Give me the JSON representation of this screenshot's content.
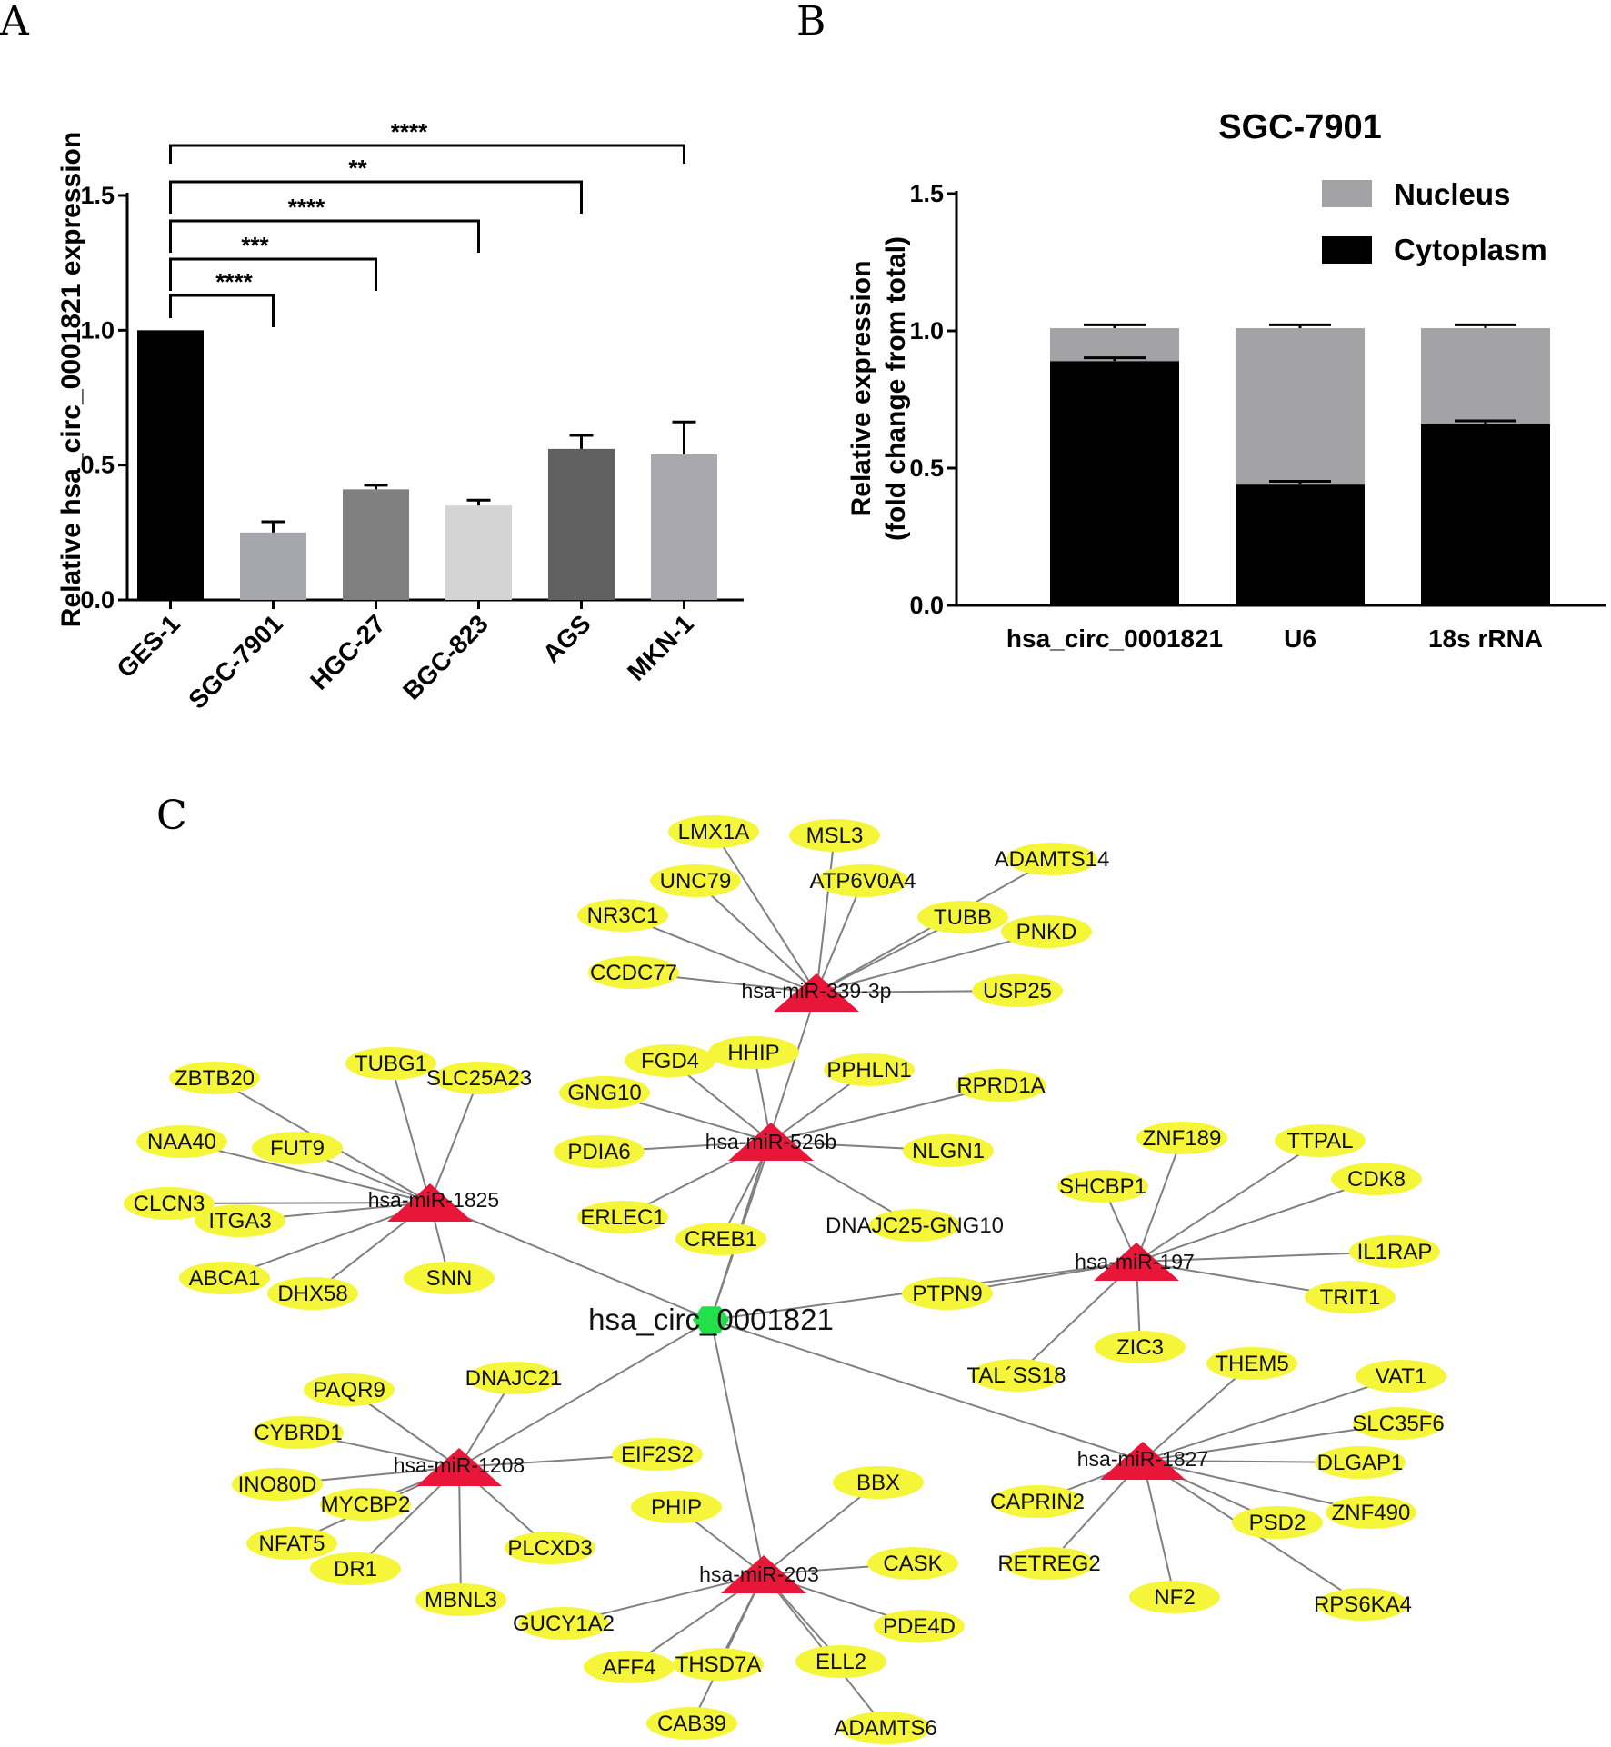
{
  "panels": {
    "a": "A",
    "b": "B",
    "c": "C"
  },
  "colors": {
    "edge": "#808080",
    "gene_fill": "#f5f53a",
    "mir_fill": "#e8173a",
    "center_fill": "#22e04a"
  },
  "chart_data": [
    {
      "type": "bar",
      "panel": "A",
      "ylabel": "Relative hsa_circ_0001821 expression",
      "ylim": [
        0,
        1.5
      ],
      "yticks": [
        "0.0",
        "0.5",
        "1.0",
        "1.5"
      ],
      "categories": [
        "GES-1",
        "SGC-7901",
        "HGC-27",
        "BGC-823",
        "AGS",
        "MKN-1"
      ],
      "values": [
        1.0,
        0.25,
        0.41,
        0.35,
        0.56,
        0.54
      ],
      "errors": [
        0,
        0.04,
        0.015,
        0.02,
        0.05,
        0.12
      ],
      "bar_colors": [
        "#000000",
        "#a6a6ad",
        "#808080",
        "#d4d4d4",
        "#606060",
        "#a8a8ae"
      ],
      "comparisons": [
        {
          "from": "GES-1",
          "to": "SGC-7901",
          "label": "****"
        },
        {
          "from": "GES-1",
          "to": "HGC-27",
          "label": "***"
        },
        {
          "from": "GES-1",
          "to": "BGC-823",
          "label": "****"
        },
        {
          "from": "GES-1",
          "to": "AGS",
          "label": "**"
        },
        {
          "from": "GES-1",
          "to": "MKN-1",
          "label": "****"
        }
      ]
    },
    {
      "type": "bar",
      "stacked": true,
      "panel": "B",
      "title": "SGC-7901",
      "ylabel_lines": [
        "Relative expression",
        "(fold change from total)"
      ],
      "ylim": [
        0,
        1.5
      ],
      "yticks": [
        "0.0",
        "0.5",
        "1.0",
        "1.5"
      ],
      "categories": [
        "hsa_circ_0001821",
        "U6",
        "18s rRNA"
      ],
      "legend_position": "top-right",
      "series": [
        {
          "name": "Cytoplasm",
          "color": "#000000",
          "values": [
            0.89,
            0.44,
            0.66
          ],
          "errors": [
            0.012,
            0.012,
            0.012
          ]
        },
        {
          "name": "Nucleus",
          "color": "#a3a3a6",
          "values": [
            0.12,
            0.57,
            0.35
          ],
          "errors": [
            0.012,
            0.012,
            0.012
          ]
        }
      ],
      "legend": [
        "Nucleus",
        "Cytoplasm"
      ]
    }
  ],
  "network": {
    "center": {
      "id": "center",
      "label": "hsa_circ_0001821"
    },
    "mirnas": [
      {
        "id": "m339",
        "label": "hsa-miR-339-3p"
      },
      {
        "id": "m526",
        "label": "hsa-miR-526b"
      },
      {
        "id": "m1825",
        "label": "hsa-miR-1825"
      },
      {
        "id": "m197",
        "label": "hsa-miR-197"
      },
      {
        "id": "m1208",
        "label": "hsa-miR-1208"
      },
      {
        "id": "m203",
        "label": "hsa-miR-203"
      },
      {
        "id": "m1827",
        "label": "hsa-miR-1827"
      }
    ],
    "genes": [
      {
        "label": "LMX1A",
        "mir": "m339"
      },
      {
        "label": "MSL3",
        "mir": "m339"
      },
      {
        "label": "ADAMTS14",
        "mir": "m339"
      },
      {
        "label": "UNC79",
        "mir": "m339"
      },
      {
        "label": "ATP6V0A4",
        "mir": "m339"
      },
      {
        "label": "NR3C1",
        "mir": "m339"
      },
      {
        "label": "TUBB",
        "mir": "m339"
      },
      {
        "label": "PNKD",
        "mir": "m339"
      },
      {
        "label": "CCDC77",
        "mir": "m339"
      },
      {
        "label": "USP25",
        "mir": "m339"
      },
      {
        "label": "FGD4",
        "mir": "m526"
      },
      {
        "label": "HHIP",
        "mir": "m526"
      },
      {
        "label": "PPHLN1",
        "mir": "m526"
      },
      {
        "label": "RPRD1A",
        "mir": "m526"
      },
      {
        "label": "GNG10",
        "mir": "m526"
      },
      {
        "label": "PDIA6",
        "mir": "m526"
      },
      {
        "label": "NLGN1",
        "mir": "m526"
      },
      {
        "label": "ERLEC1",
        "mir": "m526"
      },
      {
        "label": "DNAJC25-GNG10",
        "mir": "m526"
      },
      {
        "label": "CREB1",
        "mir": "m526"
      },
      {
        "label": "ZBTB20",
        "mir": "m1825"
      },
      {
        "label": "TUBG1",
        "mir": "m1825"
      },
      {
        "label": "SLC25A23",
        "mir": "m1825"
      },
      {
        "label": "NAA40",
        "mir": "m1825"
      },
      {
        "label": "FUT9",
        "mir": "m1825"
      },
      {
        "label": "CLCN3",
        "mir": "m1825"
      },
      {
        "label": "ITGA3",
        "mir": "m1825"
      },
      {
        "label": "ABCA1",
        "mir": "m1825"
      },
      {
        "label": "DHX58",
        "mir": "m1825"
      },
      {
        "label": "SNN",
        "mir": "m1825"
      },
      {
        "label": "ZNF189",
        "mir": "m197"
      },
      {
        "label": "TTPAL",
        "mir": "m197"
      },
      {
        "label": "SHCBP1",
        "mir": "m197"
      },
      {
        "label": "CDK8",
        "mir": "m197"
      },
      {
        "label": "IL1RAP",
        "mir": "m197"
      },
      {
        "label": "TRIT1",
        "mir": "m197"
      },
      {
        "label": "PTPN9",
        "mir": "m197"
      },
      {
        "label": "ZIC3",
        "mir": "m197"
      },
      {
        "label": "TAL´SS18",
        "mir": "m197"
      },
      {
        "label": "PAQR9",
        "mir": "m1208"
      },
      {
        "label": "DNAJC21",
        "mir": "m1208"
      },
      {
        "label": "CYBRD1",
        "mir": "m1208"
      },
      {
        "label": "EIF2S2",
        "mir": "m1208"
      },
      {
        "label": "INO80D",
        "mir": "m1208"
      },
      {
        "label": "MYCBP2",
        "mir": "m1208"
      },
      {
        "label": "NFAT5",
        "mir": "m1208"
      },
      {
        "label": "PLCXD3",
        "mir": "m1208"
      },
      {
        "label": "DR1",
        "mir": "m1208"
      },
      {
        "label": "MBNL3",
        "mir": "m1208"
      },
      {
        "label": "BBX",
        "mir": "m203"
      },
      {
        "label": "PHIP",
        "mir": "m203"
      },
      {
        "label": "CASK",
        "mir": "m203"
      },
      {
        "label": "GUCY1A2",
        "mir": "m203"
      },
      {
        "label": "PDE4D",
        "mir": "m203"
      },
      {
        "label": "AFF4",
        "mir": "m203"
      },
      {
        "label": "THSD7A",
        "mir": "m203"
      },
      {
        "label": "ELL2",
        "mir": "m203"
      },
      {
        "label": "CAB39",
        "mir": "m203"
      },
      {
        "label": "ADAMTS6",
        "mir": "m203"
      },
      {
        "label": "THEM5",
        "mir": "m1827"
      },
      {
        "label": "VAT1",
        "mir": "m1827"
      },
      {
        "label": "SLC35F6",
        "mir": "m1827"
      },
      {
        "label": "DLGAP1",
        "mir": "m1827"
      },
      {
        "label": "CAPRIN2",
        "mir": "m1827"
      },
      {
        "label": "ZNF490",
        "mir": "m1827"
      },
      {
        "label": "PSD2",
        "mir": "m1827"
      },
      {
        "label": "RETREG2",
        "mir": "m1827"
      },
      {
        "label": "NF2",
        "mir": "m1827"
      },
      {
        "label": "RPS6KA4",
        "mir": "m1827"
      }
    ]
  }
}
